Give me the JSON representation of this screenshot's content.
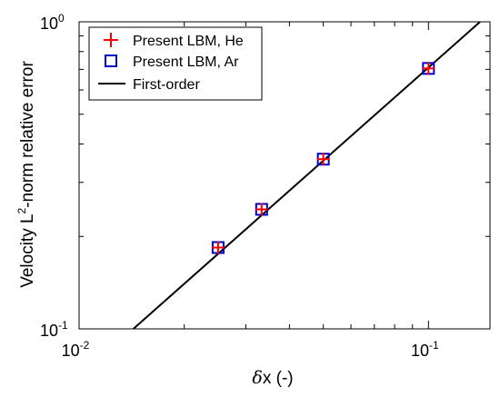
{
  "chart_data": {
    "type": "scatter",
    "x_scale": "log",
    "y_scale": "log",
    "xlim": [
      0.01,
      0.15
    ],
    "ylim": [
      0.1,
      1.0
    ],
    "x_ticks": [
      {
        "value": 0.01,
        "base": "10",
        "exp": "-2"
      },
      {
        "value": 0.1,
        "base": "10",
        "exp": "-1"
      }
    ],
    "y_ticks": [
      {
        "value": 0.1,
        "base": "10",
        "exp": "-1"
      },
      {
        "value": 1.0,
        "base": "10",
        "exp": "0"
      }
    ],
    "xlabel": {
      "greek": "δ",
      "rest": "x (-)"
    },
    "ylabel": {
      "pre": "Velocity L",
      "sup": "2",
      "post": "-norm relative error"
    },
    "legend_position": "top-left",
    "grid": false,
    "series": [
      {
        "name": "Present LBM, He",
        "marker": "plus",
        "color": "#ff0000",
        "points": [
          [
            0.025,
            0.184
          ],
          [
            0.0333,
            0.245
          ],
          [
            0.05,
            0.357
          ],
          [
            0.1,
            0.705
          ]
        ]
      },
      {
        "name": "Present LBM, Ar",
        "marker": "square",
        "color": "#0000cc",
        "points": [
          [
            0.025,
            0.184
          ],
          [
            0.0333,
            0.245
          ],
          [
            0.05,
            0.357
          ],
          [
            0.1,
            0.705
          ]
        ]
      },
      {
        "name": "First-order",
        "marker": "line",
        "color": "#000000",
        "points": [
          [
            0.0143,
            0.1
          ],
          [
            0.1405,
            1.0
          ]
        ]
      }
    ]
  }
}
